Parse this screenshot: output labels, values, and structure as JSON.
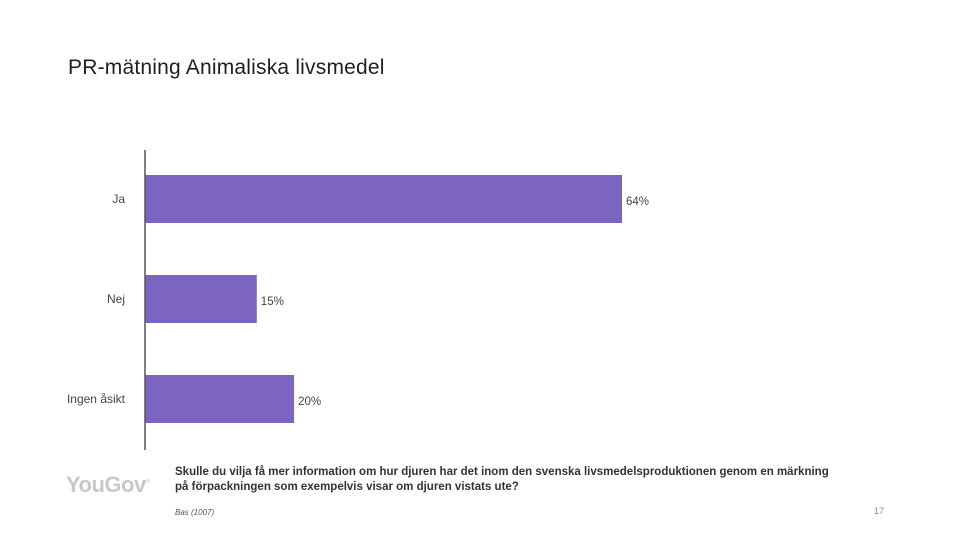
{
  "slide": {
    "title": "PR-mätning Animaliska livsmedel",
    "question": "Skulle du vilja få mer information om hur djuren har det inom den svenska livsmedelsproduktionen genom en märkning på förpackningen som exempelvis visar om djuren vistats ute?",
    "base": "Bas (1007)",
    "page_number": "17",
    "logo_text": "YouGov"
  },
  "colors": {
    "bar": "#7b65c1",
    "axis": "#555555"
  },
  "chart_data": {
    "type": "bar",
    "orientation": "horizontal",
    "categories": [
      "Ja",
      "Nej",
      "Ingen åsikt"
    ],
    "values": [
      64,
      15,
      20
    ],
    "value_labels": [
      "64%",
      "15%",
      "20%"
    ],
    "xlim": [
      0,
      64
    ],
    "grid": false
  }
}
